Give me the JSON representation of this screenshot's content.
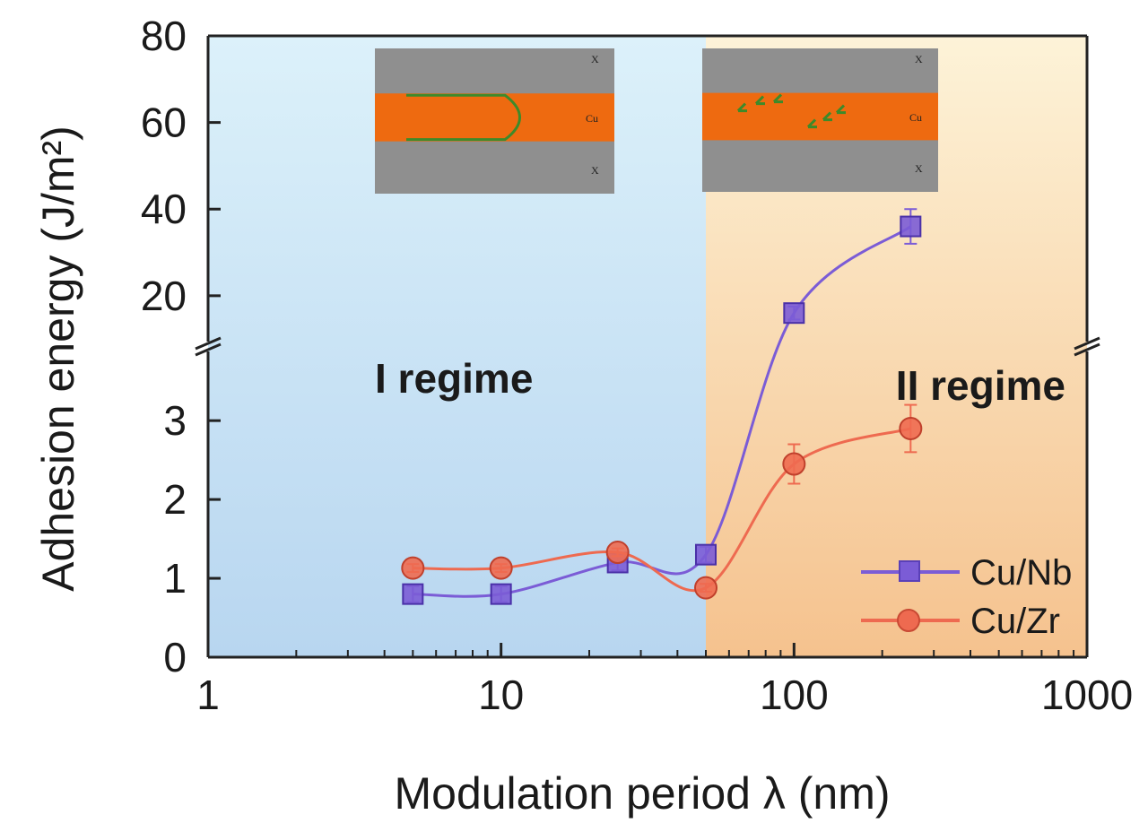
{
  "chart_data": {
    "type": "line",
    "x_scale": "log",
    "xlim": [
      1,
      1000
    ],
    "xlabel": "Modulation period λ (nm)",
    "ylabel": "Adhesion energy (J/m²)",
    "x_ticks": [
      "1",
      "10",
      "100",
      "1000"
    ],
    "y_axis_broken": true,
    "y_lower": {
      "ylim": [
        0,
        3.9
      ],
      "ticks": [
        "0",
        "1",
        "2",
        "3"
      ]
    },
    "y_upper": {
      "ylim": [
        9,
        80
      ],
      "ticks": [
        "20",
        "40",
        "60",
        "80"
      ]
    },
    "regions": [
      {
        "label": "I regime",
        "x_range": [
          1,
          50
        ],
        "color": "#cfe6f5"
      },
      {
        "label": "II regime",
        "x_range": [
          50,
          1000
        ],
        "color": "#f7d6ad"
      }
    ],
    "series": [
      {
        "name": "Cu/Nb",
        "color": "#7b5cd6",
        "marker": "square",
        "x": [
          5,
          10,
          25,
          50,
          100,
          250
        ],
        "y": [
          0.8,
          0.8,
          1.2,
          1.3,
          16,
          36
        ],
        "err": [
          0.1,
          0.1,
          0.1,
          0.1,
          1.5,
          4
        ]
      },
      {
        "name": "Cu/Zr",
        "color": "#ee6a50",
        "marker": "circle",
        "x": [
          5,
          10,
          25,
          50,
          100,
          250
        ],
        "y": [
          1.13,
          1.13,
          1.33,
          0.88,
          2.45,
          2.9
        ],
        "err": [
          0.05,
          0.05,
          0.05,
          0.05,
          0.25,
          0.3
        ]
      }
    ],
    "insets": [
      {
        "name": "regime-I-schematic",
        "labels": [
          "X",
          "Cu",
          "X"
        ]
      },
      {
        "name": "regime-II-schematic",
        "labels": [
          "X",
          "Cu",
          "X"
        ]
      }
    ]
  }
}
